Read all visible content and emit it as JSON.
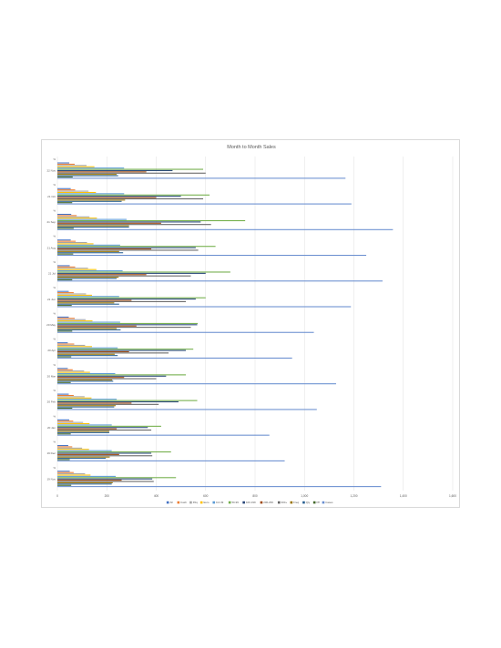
{
  "chart_data": {
    "type": "bar",
    "orientation": "horizontal",
    "title": "Month to Month Sales",
    "xlabel": "",
    "ylabel": "",
    "xlim": [
      0,
      1600
    ],
    "x_ticks": [
      "0",
      "200",
      "400",
      "600",
      "800",
      "1,000",
      "1,200",
      "1,400",
      "1,600"
    ],
    "grid": true,
    "legend_position": "bottom",
    "categories": [
      "22 Nov",
      "21 Oct",
      "21 Sep",
      "21 Aug",
      "21 Jul",
      "21 Jun",
      "20 May",
      "20 Apr",
      "20 Mar",
      "20 Feb",
      "20 Jan",
      "19 Dec",
      "19 Nov"
    ],
    "sub_label": "%",
    "series": [
      {
        "name": "All",
        "color": "#4472c4",
        "values": [
          48,
          54,
          56,
          54,
          50,
          46,
          46,
          42,
          42,
          46,
          48,
          44,
          50
        ]
      },
      {
        "name": "Cash",
        "color": "#ed7d31",
        "values": [
          70,
          72,
          78,
          74,
          72,
          66,
          70,
          68,
          62,
          66,
          64,
          60,
          66
        ]
      },
      {
        "name": "Pdq",
        "color": "#a5a5a5",
        "values": [
          118,
          126,
          130,
          120,
          124,
          116,
          114,
          112,
          108,
          110,
          104,
          100,
          112
        ]
      },
      {
        "name": "Euro",
        "color": "#ffc000",
        "values": [
          150,
          156,
          160,
          146,
          158,
          140,
          142,
          140,
          132,
          138,
          130,
          128,
          134
        ]
      },
      {
        "name": "0-0.49",
        "color": "#5b9bd5",
        "values": [
          270,
          270,
          280,
          254,
          264,
          250,
          254,
          244,
          234,
          240,
          220,
          220,
          236
        ]
      },
      {
        "name": "50-99",
        "color": "#70ad47",
        "values": [
          590,
          616,
          760,
          640,
          700,
          600,
          568,
          550,
          520,
          566,
          420,
          460,
          480
        ]
      },
      {
        "name": "100-199",
        "color": "#264478",
        "values": [
          466,
          500,
          580,
          560,
          600,
          560,
          566,
          520,
          440,
          490,
          366,
          380,
          384
        ]
      },
      {
        "name": "200-299",
        "color": "#9e480e",
        "values": [
          360,
          400,
          420,
          380,
          360,
          300,
          320,
          290,
          270,
          300,
          240,
          250,
          260
        ]
      },
      {
        "name": "300+",
        "color": "#636363",
        "values": [
          600,
          590,
          622,
          570,
          540,
          520,
          540,
          450,
          400,
          410,
          380,
          384,
          390
        ]
      },
      {
        "name": "Freq",
        "color": "#997300",
        "values": [
          240,
          274,
          290,
          250,
          248,
          230,
          240,
          232,
          222,
          236,
          210,
          212,
          224
        ]
      },
      {
        "name": "Qty",
        "color": "#255e91",
        "values": [
          246,
          260,
          290,
          266,
          240,
          250,
          256,
          244,
          226,
          230,
          210,
          196,
          220
        ]
      },
      {
        "name": "PP",
        "color": "#43682b",
        "values": [
          62,
          60,
          66,
          64,
          60,
          58,
          60,
          56,
          54,
          60,
          54,
          50,
          56
        ]
      },
      {
        "name": "Cases",
        "color": "#698ed0",
        "values": [
          1166,
          1190,
          1358,
          1250,
          1316,
          1188,
          1038,
          950,
          1128,
          1050,
          858,
          920,
          1310
        ]
      }
    ]
  }
}
